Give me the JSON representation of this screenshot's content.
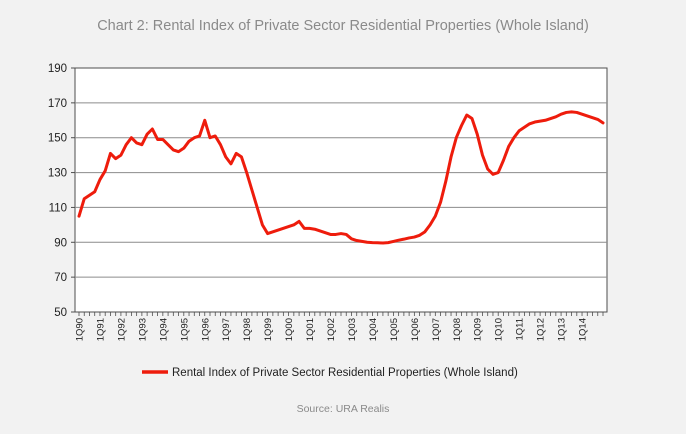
{
  "chart_data": {
    "type": "line",
    "title": "Chart 2: Rental Index of Private Sector Residential Properties (Whole Island)",
    "source": "Source: URA Realis",
    "ylim": [
      50,
      190
    ],
    "yticks": [
      50,
      70,
      90,
      110,
      130,
      150,
      170,
      190
    ],
    "grid": "horizontal",
    "legend_position": "bottom",
    "line_color": "#ee1c0c",
    "xtick_labels": [
      "1Q90",
      "1Q91",
      "1Q92",
      "1Q93",
      "1Q94",
      "1Q95",
      "1Q96",
      "1Q97",
      "1Q98",
      "1Q99",
      "1Q00",
      "1Q01",
      "1Q02",
      "1Q03",
      "1Q04",
      "1Q05",
      "1Q06",
      "1Q07",
      "1Q08",
      "1Q09",
      "1Q10",
      "1Q11",
      "1Q12",
      "1Q13",
      "1Q14"
    ],
    "series": [
      {
        "name": "Rental Index of Private Sector Residential Properties (Whole Island)",
        "values": [
          105,
          115,
          117,
          119,
          126,
          131,
          141,
          138,
          140,
          146,
          150,
          147,
          146,
          152,
          155,
          149,
          149,
          146,
          143,
          142,
          144,
          148,
          150,
          151,
          160,
          150,
          151,
          146,
          139,
          135,
          141,
          139,
          130,
          120,
          110,
          100,
          95,
          96,
          97,
          98,
          99,
          100,
          102,
          98,
          98,
          97.5,
          96.5,
          95.5,
          94.5,
          94.5,
          95,
          94.5,
          92,
          91,
          90.5,
          90,
          89.8,
          89.7,
          89.6,
          89.8,
          90.5,
          91.2,
          91.8,
          92.5,
          93,
          94,
          96,
          100,
          105,
          113,
          125,
          139,
          150,
          157,
          163,
          161,
          152,
          140,
          132,
          129,
          130,
          137,
          145,
          150,
          154,
          156,
          158,
          159,
          159.5,
          160,
          161,
          162,
          163.5,
          164.5,
          164.8,
          164.5,
          163.5,
          162.5,
          161.5,
          160.5,
          158.5
        ]
      }
    ]
  }
}
